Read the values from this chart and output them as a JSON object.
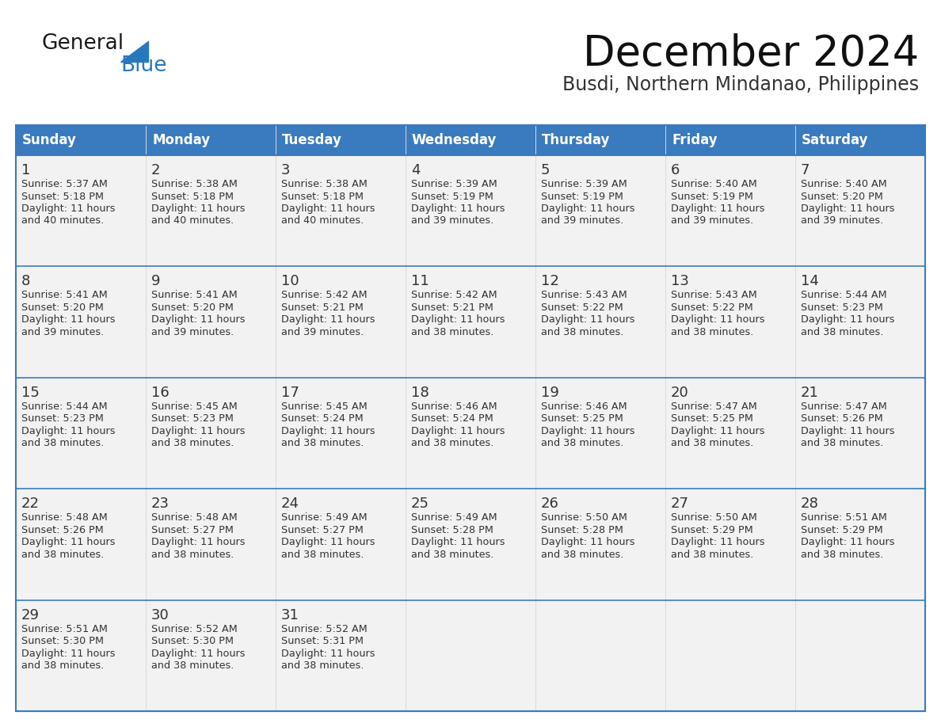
{
  "title": "December 2024",
  "subtitle": "Busdi, Northern Mindanao, Philippines",
  "days_of_week": [
    "Sunday",
    "Monday",
    "Tuesday",
    "Wednesday",
    "Thursday",
    "Friday",
    "Saturday"
  ],
  "header_bg": "#3a7abf",
  "header_text": "#ffffff",
  "cell_bg": "#f2f2f2",
  "cell_bg_empty": "#f2f2f2",
  "border_color": "#3a7abf",
  "row_sep_color": "#3a7abf",
  "text_color": "#333333",
  "logo_general_color": "#1a1a1a",
  "logo_blue_color": "#2878be",
  "calendar_data": [
    [
      {
        "day": 1,
        "sunrise": "5:37 AM",
        "sunset": "5:18 PM",
        "daylight_extra": "40 minutes."
      },
      {
        "day": 2,
        "sunrise": "5:38 AM",
        "sunset": "5:18 PM",
        "daylight_extra": "40 minutes."
      },
      {
        "day": 3,
        "sunrise": "5:38 AM",
        "sunset": "5:18 PM",
        "daylight_extra": "40 minutes."
      },
      {
        "day": 4,
        "sunrise": "5:39 AM",
        "sunset": "5:19 PM",
        "daylight_extra": "39 minutes."
      },
      {
        "day": 5,
        "sunrise": "5:39 AM",
        "sunset": "5:19 PM",
        "daylight_extra": "39 minutes."
      },
      {
        "day": 6,
        "sunrise": "5:40 AM",
        "sunset": "5:19 PM",
        "daylight_extra": "39 minutes."
      },
      {
        "day": 7,
        "sunrise": "5:40 AM",
        "sunset": "5:20 PM",
        "daylight_extra": "39 minutes."
      }
    ],
    [
      {
        "day": 8,
        "sunrise": "5:41 AM",
        "sunset": "5:20 PM",
        "daylight_extra": "39 minutes."
      },
      {
        "day": 9,
        "sunrise": "5:41 AM",
        "sunset": "5:20 PM",
        "daylight_extra": "39 minutes."
      },
      {
        "day": 10,
        "sunrise": "5:42 AM",
        "sunset": "5:21 PM",
        "daylight_extra": "39 minutes."
      },
      {
        "day": 11,
        "sunrise": "5:42 AM",
        "sunset": "5:21 PM",
        "daylight_extra": "38 minutes."
      },
      {
        "day": 12,
        "sunrise": "5:43 AM",
        "sunset": "5:22 PM",
        "daylight_extra": "38 minutes."
      },
      {
        "day": 13,
        "sunrise": "5:43 AM",
        "sunset": "5:22 PM",
        "daylight_extra": "38 minutes."
      },
      {
        "day": 14,
        "sunrise": "5:44 AM",
        "sunset": "5:23 PM",
        "daylight_extra": "38 minutes."
      }
    ],
    [
      {
        "day": 15,
        "sunrise": "5:44 AM",
        "sunset": "5:23 PM",
        "daylight_extra": "38 minutes."
      },
      {
        "day": 16,
        "sunrise": "5:45 AM",
        "sunset": "5:23 PM",
        "daylight_extra": "38 minutes."
      },
      {
        "day": 17,
        "sunrise": "5:45 AM",
        "sunset": "5:24 PM",
        "daylight_extra": "38 minutes."
      },
      {
        "day": 18,
        "sunrise": "5:46 AM",
        "sunset": "5:24 PM",
        "daylight_extra": "38 minutes."
      },
      {
        "day": 19,
        "sunrise": "5:46 AM",
        "sunset": "5:25 PM",
        "daylight_extra": "38 minutes."
      },
      {
        "day": 20,
        "sunrise": "5:47 AM",
        "sunset": "5:25 PM",
        "daylight_extra": "38 minutes."
      },
      {
        "day": 21,
        "sunrise": "5:47 AM",
        "sunset": "5:26 PM",
        "daylight_extra": "38 minutes."
      }
    ],
    [
      {
        "day": 22,
        "sunrise": "5:48 AM",
        "sunset": "5:26 PM",
        "daylight_extra": "38 minutes."
      },
      {
        "day": 23,
        "sunrise": "5:48 AM",
        "sunset": "5:27 PM",
        "daylight_extra": "38 minutes."
      },
      {
        "day": 24,
        "sunrise": "5:49 AM",
        "sunset": "5:27 PM",
        "daylight_extra": "38 minutes."
      },
      {
        "day": 25,
        "sunrise": "5:49 AM",
        "sunset": "5:28 PM",
        "daylight_extra": "38 minutes."
      },
      {
        "day": 26,
        "sunrise": "5:50 AM",
        "sunset": "5:28 PM",
        "daylight_extra": "38 minutes."
      },
      {
        "day": 27,
        "sunrise": "5:50 AM",
        "sunset": "5:29 PM",
        "daylight_extra": "38 minutes."
      },
      {
        "day": 28,
        "sunrise": "5:51 AM",
        "sunset": "5:29 PM",
        "daylight_extra": "38 minutes."
      }
    ],
    [
      {
        "day": 29,
        "sunrise": "5:51 AM",
        "sunset": "5:30 PM",
        "daylight_extra": "38 minutes."
      },
      {
        "day": 30,
        "sunrise": "5:52 AM",
        "sunset": "5:30 PM",
        "daylight_extra": "38 minutes."
      },
      {
        "day": 31,
        "sunrise": "5:52 AM",
        "sunset": "5:31 PM",
        "daylight_extra": "38 minutes."
      },
      null,
      null,
      null,
      null
    ]
  ]
}
